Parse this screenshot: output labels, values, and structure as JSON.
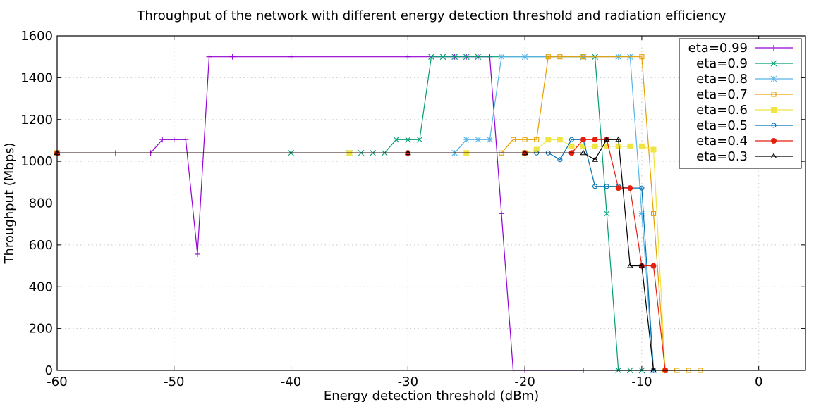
{
  "chart_data": {
    "type": "line",
    "title": "Throughput of the network with different energy detection threshold and radiation efficiency",
    "xlabel": "Energy detection threshold (dBm)",
    "ylabel": "Throughput (Mbps)",
    "xlim": [
      -60,
      4
    ],
    "ylim": [
      0,
      1600
    ],
    "xticks": [
      -60,
      -50,
      -40,
      -30,
      -20,
      -10,
      0
    ],
    "yticks": [
      0,
      200,
      400,
      600,
      800,
      1000,
      1200,
      1400,
      1600
    ],
    "grid": true,
    "legend_position": "top-right",
    "series": [
      {
        "name": "eta=0.99",
        "color": "#9400d3",
        "marker": "plus",
        "x": [
          -60,
          -55,
          -52,
          -51,
          -50,
          -49,
          -48,
          -47,
          -45,
          -40,
          -30,
          -26,
          -25,
          -24,
          -23,
          -22,
          -21,
          -20,
          -15
        ],
        "y": [
          1040,
          1040,
          1040,
          1104,
          1104,
          1104,
          556,
          1500,
          1500,
          1500,
          1500,
          1500,
          1500,
          1500,
          1500,
          750,
          0,
          0,
          0
        ]
      },
      {
        "name": "eta=0.9",
        "color": "#009e73",
        "marker": "x",
        "x": [
          -60,
          -40,
          -35,
          -34,
          -33,
          -32,
          -31,
          -30,
          -29,
          -28,
          -27,
          -26,
          -25,
          -24,
          -15,
          -14,
          -13,
          -12,
          -11,
          -10
        ],
        "y": [
          1040,
          1040,
          1040,
          1040,
          1040,
          1040,
          1104,
          1104,
          1104,
          1500,
          1500,
          1500,
          1500,
          1500,
          1500,
          1500,
          750,
          0,
          0,
          0
        ]
      },
      {
        "name": "eta=0.8",
        "color": "#56b4e9",
        "marker": "star",
        "x": [
          -60,
          -26,
          -25,
          -24,
          -23,
          -22,
          -20,
          -15,
          -12,
          -11,
          -10,
          -9
        ],
        "y": [
          1040,
          1040,
          1104,
          1104,
          1104,
          1500,
          1500,
          1500,
          1500,
          1500,
          750,
          0
        ]
      },
      {
        "name": "eta=0.7",
        "color": "#e69f00",
        "marker": "square",
        "x": [
          -60,
          -22,
          -21,
          -20,
          -19,
          -18,
          -17,
          -15,
          -10,
          -9,
          -8,
          -7,
          -6,
          -5
        ],
        "y": [
          1040,
          1040,
          1104,
          1104,
          1104,
          1500,
          1500,
          1500,
          1500,
          750,
          0,
          0,
          0,
          0
        ]
      },
      {
        "name": "eta=0.6",
        "color": "#f0e442",
        "marker": "filled-square",
        "x": [
          -60,
          -35,
          -25,
          -20,
          -19,
          -18,
          -17,
          -16,
          -15,
          -14,
          -13,
          -12,
          -11,
          -10,
          -9,
          -8
        ],
        "y": [
          1040,
          1040,
          1040,
          1040,
          1056,
          1104,
          1104,
          1072,
          1072,
          1072,
          1072,
          1072,
          1072,
          1072,
          1056,
          0
        ]
      },
      {
        "name": "eta=0.5",
        "color": "#0072b2",
        "marker": "circle",
        "x": [
          -60,
          -30,
          -20,
          -19,
          -18,
          -17,
          -16,
          -15,
          -14,
          -13,
          -12,
          -11,
          -10,
          -9
        ],
        "y": [
          1040,
          1040,
          1040,
          1040,
          1040,
          1008,
          1104,
          1104,
          880,
          880,
          880,
          872,
          872,
          0
        ]
      },
      {
        "name": "eta=0.4",
        "color": "#e51e10",
        "marker": "filled-circle",
        "x": [
          -60,
          -30,
          -20,
          -16,
          -15,
          -14,
          -13,
          -12,
          -11,
          -10,
          -9,
          -8
        ],
        "y": [
          1040,
          1040,
          1040,
          1040,
          1104,
          1104,
          1104,
          872,
          872,
          500,
          500,
          0
        ]
      },
      {
        "name": "eta=0.3",
        "color": "#000000",
        "marker": "triangle",
        "x": [
          -60,
          -30,
          -20,
          -15,
          -14,
          -13,
          -12,
          -11,
          -10,
          -9
        ],
        "y": [
          1040,
          1040,
          1040,
          1040,
          1008,
          1104,
          1104,
          500,
          500,
          0
        ]
      }
    ]
  }
}
